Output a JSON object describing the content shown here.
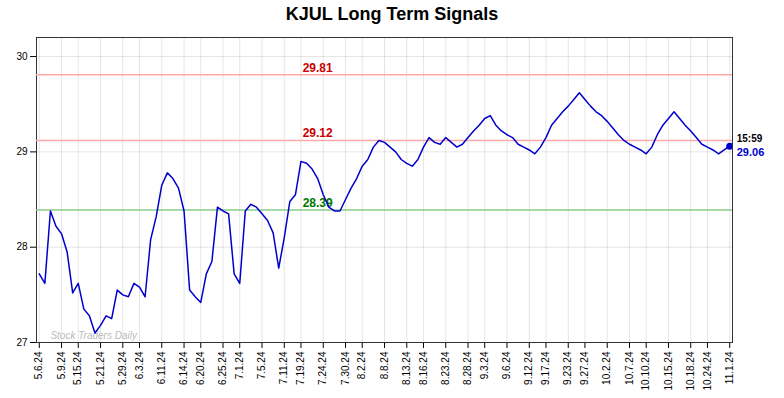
{
  "chart_data": {
    "type": "line",
    "title": "KJUL Long Term Signals",
    "color": "#0000cc",
    "grid": true,
    "ylim": [
      27.0,
      30.2
    ],
    "yticks": [
      27,
      28,
      29,
      30
    ],
    "categories": [
      "5.6.24",
      null,
      null,
      null,
      "5.9.24",
      null,
      null,
      "5.15.24",
      null,
      null,
      null,
      "5.21.24",
      null,
      null,
      null,
      "5.29.24",
      null,
      null,
      "6.3.24",
      null,
      null,
      null,
      "6.11.24",
      null,
      null,
      null,
      "6.14.24",
      null,
      null,
      "6.20.24",
      null,
      null,
      null,
      "6.25.24",
      null,
      null,
      "7.1.24",
      null,
      null,
      null,
      "7.5.24",
      null,
      null,
      null,
      "7.11.24",
      null,
      null,
      "7.19.24",
      null,
      null,
      null,
      "7.24.24",
      null,
      null,
      null,
      "7.30.24",
      null,
      null,
      "8.2.24",
      null,
      null,
      null,
      "8.8.24",
      null,
      null,
      null,
      "8.13.24",
      null,
      null,
      "8.16.24",
      null,
      null,
      null,
      "8.23.24",
      null,
      null,
      null,
      "8.28.24",
      null,
      null,
      "9.3.24",
      null,
      null,
      null,
      "9.6.24",
      null,
      null,
      null,
      "9.12.24",
      null,
      null,
      "9.17.24",
      null,
      null,
      null,
      "9.23.24",
      null,
      null,
      "9.27.24",
      null,
      null,
      null,
      "10.2.24",
      null,
      null,
      null,
      "10.7.24",
      null,
      null,
      "10.10.24",
      null,
      null,
      null,
      "10.15.24",
      null,
      null,
      null,
      "10.18.24",
      null,
      null,
      "10.24.24",
      null,
      null,
      null,
      "11.1.24"
    ],
    "values": [
      27.72,
      27.62,
      28.38,
      28.22,
      28.14,
      27.95,
      27.52,
      27.62,
      27.35,
      27.28,
      27.1,
      27.18,
      27.28,
      27.25,
      27.55,
      27.5,
      27.48,
      27.62,
      27.58,
      27.48,
      28.08,
      28.32,
      28.65,
      28.78,
      28.72,
      28.62,
      28.38,
      27.55,
      27.48,
      27.42,
      27.72,
      27.85,
      28.42,
      28.38,
      28.35,
      27.72,
      27.62,
      28.38,
      28.45,
      28.42,
      28.35,
      28.28,
      28.15,
      27.78,
      28.1,
      28.48,
      28.55,
      28.9,
      28.88,
      28.82,
      28.72,
      28.55,
      28.42,
      28.38,
      28.38,
      28.5,
      28.62,
      28.72,
      28.85,
      28.92,
      29.05,
      29.12,
      29.1,
      29.05,
      29.0,
      28.92,
      28.88,
      28.85,
      28.92,
      29.05,
      29.15,
      29.1,
      29.08,
      29.15,
      29.1,
      29.05,
      29.08,
      29.15,
      29.22,
      29.28,
      29.35,
      29.38,
      29.28,
      29.22,
      29.18,
      29.15,
      29.08,
      29.05,
      29.02,
      28.98,
      29.05,
      29.15,
      29.28,
      29.35,
      29.42,
      29.48,
      29.55,
      29.62,
      29.55,
      29.48,
      29.42,
      29.38,
      29.32,
      29.25,
      29.18,
      29.12,
      29.08,
      29.05,
      29.02,
      28.98,
      29.05,
      29.18,
      29.28,
      29.35,
      29.42,
      29.35,
      29.28,
      29.22,
      29.15,
      29.08,
      29.05,
      29.02,
      28.98,
      29.02,
      29.06
    ],
    "reference_lines": [
      {
        "value": 29.81,
        "label": "29.81",
        "color": "#ffaaaa",
        "label_color": "#cc0000"
      },
      {
        "value": 29.12,
        "label": "29.12",
        "color": "#ffaaaa",
        "label_color": "#cc0000"
      },
      {
        "value": 28.39,
        "label": "28.39",
        "color": "#88cc88",
        "label_color": "#007700"
      }
    ],
    "last_point": {
      "time": "15:59",
      "time_color": "#000000",
      "value_label": "29.06",
      "color": "#0000cc"
    },
    "watermark": {
      "text": "Stock Traders Daily",
      "color": "#bbbbbb"
    }
  }
}
